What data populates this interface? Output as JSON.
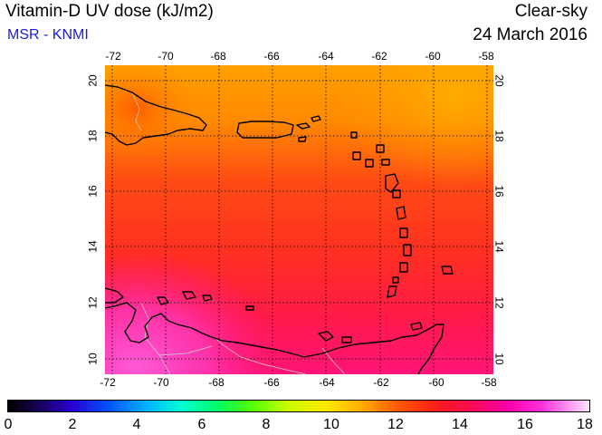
{
  "header": {
    "title": "Vitamin-D UV dose (kJ/m2)",
    "source": "MSR - KNMI",
    "mode": "Clear-sky",
    "date": "24 March 2016"
  },
  "axes": {
    "lon_ticks": [
      "-72",
      "-70",
      "-68",
      "-66",
      "-64",
      "-62",
      "-60",
      "-58"
    ],
    "lat_ticks": [
      "20",
      "18",
      "16",
      "14",
      "12",
      "10"
    ]
  },
  "colorbar": {
    "ticks": [
      "0",
      "2",
      "4",
      "6",
      "8",
      "10",
      "12",
      "14",
      "16",
      "18"
    ]
  },
  "map_extent": {
    "lon_min": -72.1,
    "lon_max": -57.9,
    "lat_min": 9.4,
    "lat_max": 20.6
  },
  "colors": {
    "north": "#ff9a00",
    "center": "#ff3a1e",
    "south": "#ff1466",
    "southwest": "#ff44c8",
    "coast": "#000000",
    "border": "#c8c8c8"
  }
}
